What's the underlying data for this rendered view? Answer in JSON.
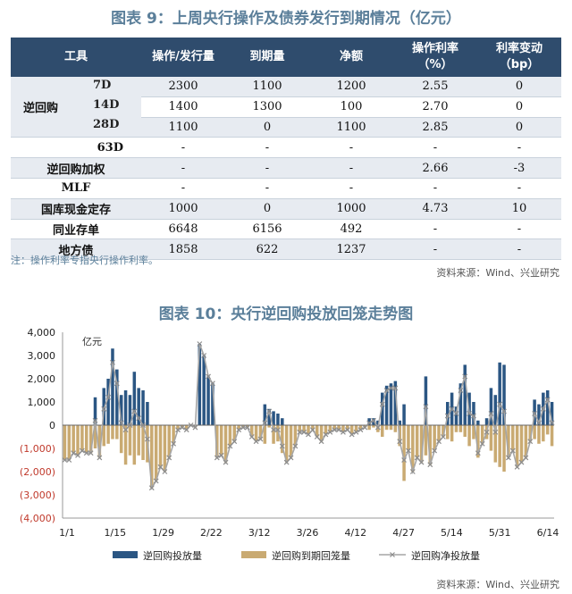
{
  "table": {
    "title": "图表 9：上周央行操作及债券发行到期情况（亿元）",
    "headers": [
      "工具",
      "操作/发行量",
      "到期量",
      "净额",
      "操作利率\n（%）",
      "利率变动\n（bp）"
    ],
    "group_label": "逆回购",
    "rows": [
      {
        "label": "7D",
        "vals": [
          "2300",
          "1100",
          "1200",
          "2.55",
          "0"
        ]
      },
      {
        "label": "14D",
        "vals": [
          "1400",
          "1300",
          "100",
          "2.70",
          "0"
        ]
      },
      {
        "label": "28D",
        "vals": [
          "1100",
          "0",
          "1100",
          "2.85",
          "0"
        ]
      },
      {
        "label": "63D",
        "vals": [
          "-",
          "-",
          "-",
          "-",
          "-"
        ]
      },
      {
        "label": "逆回购加权",
        "vals": [
          "-",
          "-",
          "-",
          "2.66",
          "-3"
        ]
      },
      {
        "label": "MLF",
        "vals": [
          "-",
          "-",
          "-",
          "-",
          "-"
        ]
      },
      {
        "label": "国库现金定存",
        "vals": [
          "1000",
          "0",
          "1000",
          "4.73",
          "10"
        ]
      },
      {
        "label": "同业存单",
        "vals": [
          "6648",
          "6156",
          "492",
          "-",
          "-"
        ]
      },
      {
        "label": "地方债",
        "vals": [
          "1858",
          "622",
          "1237",
          "-",
          "-"
        ]
      }
    ],
    "note": "注：操作利率专指央行操作利率。",
    "source": "资料来源：Wind、兴业研究"
  },
  "chart_title": "图表 10：央行逆回购投放回笼走势图",
  "chart_source": "资料来源：Wind、兴业研究",
  "colors": {
    "injection": "#2b5683",
    "maturity": "#c9aa72",
    "net": "#a6a6a6",
    "negative_tick": "#c0392b"
  },
  "chart_data": {
    "type": "bar",
    "unit": "亿元",
    "ylim": [
      -4000,
      4000
    ],
    "yticks": [
      "4,000",
      "3,000",
      "2,000",
      "1,000",
      "0",
      "(1,000)",
      "(2,000)",
      "(3,000)",
      "(4,000)"
    ],
    "xticks": [
      "1/1",
      "1/15",
      "1/29",
      "2/22",
      "3/12",
      "3/26",
      "4/12",
      "4/27",
      "5/14",
      "5/31",
      "6/14"
    ],
    "series": [
      {
        "name": "逆回购投放量",
        "values": [
          0,
          0,
          0,
          0,
          0,
          0,
          0,
          1200,
          0,
          1600,
          2000,
          3300,
          2400,
          1300,
          1500,
          1300,
          2300,
          1600,
          1500,
          1000,
          0,
          0,
          0,
          0,
          0,
          0,
          0,
          0,
          0,
          0,
          0,
          3500,
          3000,
          2100,
          1800,
          0,
          0,
          0,
          0,
          0,
          0,
          0,
          0,
          0,
          0,
          0,
          900,
          700,
          600,
          500,
          300,
          0,
          0,
          0,
          0,
          0,
          0,
          0,
          0,
          0,
          0,
          0,
          0,
          0,
          0,
          0,
          0,
          0,
          0,
          0,
          300,
          300,
          200,
          1400,
          1700,
          1800,
          1900,
          200,
          900,
          0,
          0,
          0,
          0,
          2100,
          0,
          0,
          0,
          0,
          1000,
          1400,
          800,
          1800,
          2600,
          1400,
          1000,
          200,
          0,
          300,
          1600,
          1300,
          2700,
          2600,
          0,
          0,
          0,
          0,
          0,
          0,
          1100,
          900,
          1400,
          1500,
          1000
        ]
      },
      {
        "name": "逆回购到期回笼量",
        "values": [
          -1500,
          -1500,
          -1200,
          -1300,
          -1100,
          -1200,
          -1200,
          -1000,
          -1400,
          -900,
          -800,
          -600,
          -600,
          -1200,
          -1700,
          -1300,
          -1700,
          -1300,
          -1500,
          -1600,
          -2700,
          -2400,
          -1800,
          -2000,
          -1400,
          -800,
          -200,
          -100,
          -200,
          0,
          -100,
          0,
          0,
          0,
          0,
          -1400,
          -1300,
          -1600,
          -900,
          -700,
          -200,
          -100,
          -100,
          -500,
          -700,
          -600,
          -800,
          -100,
          -800,
          -700,
          -1200,
          -1600,
          -1400,
          -900,
          -300,
          -300,
          -400,
          -200,
          -500,
          -700,
          -400,
          -300,
          -200,
          -200,
          -300,
          -200,
          -400,
          -300,
          -200,
          -100,
          -200,
          -100,
          -300,
          -500,
          -200,
          -200,
          -300,
          -900,
          -2400,
          -1100,
          -2000,
          -1400,
          -1600,
          -1300,
          -1700,
          -1100,
          -700,
          -500,
          -600,
          -700,
          -300,
          -300,
          -500,
          -900,
          -600,
          -1400,
          -800,
          -600,
          -1100,
          -1600,
          -1800,
          -2000,
          -1400,
          -1100,
          -1800,
          -1600,
          -1400,
          -700,
          -600,
          -800,
          -700,
          -400,
          -900,
          -800,
          -900
        ]
      },
      {
        "name": "逆回购净投放量",
        "values": [
          -1500,
          -1500,
          -1200,
          -1300,
          -1100,
          -1200,
          -1200,
          200,
          -1400,
          700,
          1200,
          2700,
          1800,
          100,
          -200,
          0,
          600,
          300,
          0,
          -600,
          -2700,
          -2400,
          -1800,
          -2000,
          -1400,
          -800,
          -200,
          -100,
          -200,
          0,
          -100,
          3500,
          3000,
          2100,
          1800,
          -1400,
          -1300,
          -1600,
          -900,
          -700,
          -200,
          -100,
          -100,
          -500,
          -700,
          -600,
          100,
          600,
          -200,
          -200,
          -900,
          -1600,
          -1400,
          -900,
          -300,
          -300,
          -400,
          -200,
          -500,
          -700,
          -400,
          -300,
          -200,
          -200,
          -300,
          -200,
          -400,
          -300,
          -200,
          -100,
          100,
          200,
          -100,
          900,
          1500,
          1600,
          1600,
          -700,
          -1500,
          -1100,
          -2000,
          -1400,
          -1600,
          800,
          -1700,
          -1100,
          -700,
          -500,
          400,
          700,
          500,
          1500,
          2100,
          500,
          400,
          -1200,
          -800,
          -300,
          500,
          -300,
          900,
          600,
          -1400,
          -1100,
          -1800,
          -1600,
          -1400,
          -700,
          500,
          100,
          700,
          1100,
          100,
          700,
          100
        ]
      }
    ]
  }
}
